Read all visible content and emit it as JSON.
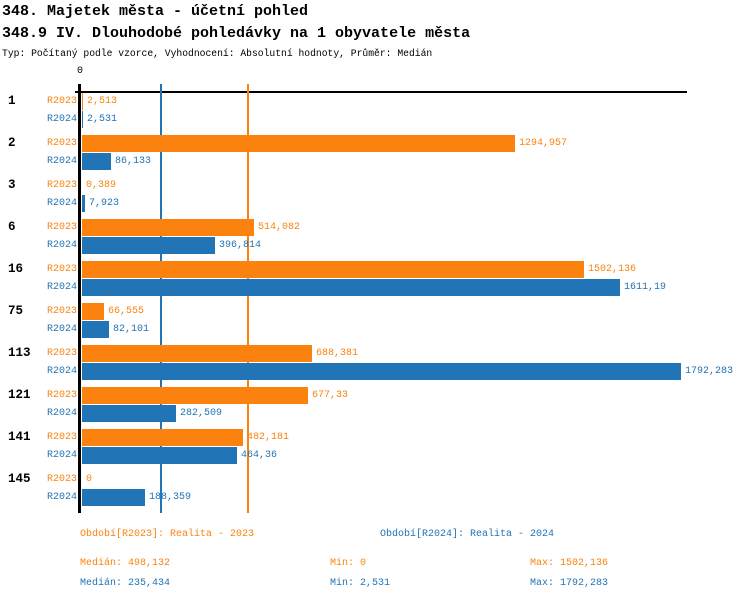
{
  "header": {
    "title": "348. Majetek města - účetní pohled",
    "subtitle": "348.9 IV. Dlouhodobé pohledávky na 1 obyvatele města",
    "meta": "Typ: Počítaný podle vzorce, Vyhodnocení: Absolutní hodnoty, Průměr: Medián"
  },
  "chart_data": {
    "type": "bar",
    "orientation": "horizontal",
    "title": "348.9 IV. Dlouhodobé pohledávky na 1 obyvatele města",
    "axis": {
      "origin_tick_label": "0",
      "xlim": [
        0,
        1792.283
      ],
      "grid": "median-lines-only"
    },
    "legend_position": "bottom",
    "categories": [
      "1",
      "2",
      "3",
      "6",
      "16",
      "75",
      "113",
      "121",
      "141",
      "145"
    ],
    "series": [
      {
        "id": "r2023",
        "label": "R2023",
        "legend": "Období[R2023]: Realita - 2023",
        "color": "#FB820F",
        "values": [
          2.513,
          1294.957,
          0.389,
          514.082,
          1502.136,
          66.555,
          688.381,
          677.33,
          482.181,
          0
        ],
        "value_labels": [
          "2,513",
          "1294,957",
          "0,389",
          "514,082",
          "1502,136",
          "66,555",
          "688,381",
          "677,33",
          "482,181",
          "0"
        ],
        "median_value": 498.132,
        "stats": {
          "median": "Medián: 498,132",
          "min": "Min: 0",
          "max": "Max: 1502,136"
        }
      },
      {
        "id": "r2024",
        "label": "R2024",
        "legend": "Období[R2024]: Realita - 2024",
        "color": "#2174B5",
        "values": [
          2.531,
          86.133,
          7.923,
          396.814,
          1611.19,
          82.101,
          1792.283,
          282.509,
          464.36,
          188.359
        ],
        "value_labels": [
          "2,531",
          "86,133",
          "7,923",
          "396,814",
          "1611,19",
          "82,101",
          "1792,283",
          "282,509",
          "464,36",
          "188,359"
        ],
        "median_value": 235.434,
        "stats": {
          "median": "Medián: 235,434",
          "min": "Min: 2,531",
          "max": "Max: 1792,283"
        }
      }
    ]
  }
}
